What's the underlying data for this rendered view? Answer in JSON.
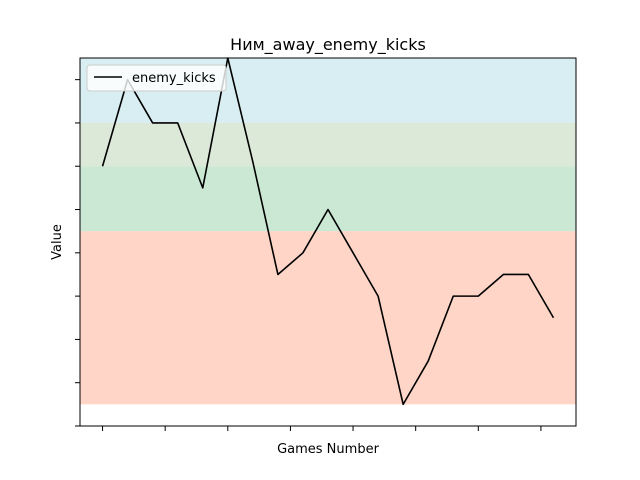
{
  "chart_data": {
    "type": "line",
    "title": "Ним_away_enemy_kicks",
    "xlabel": "Games Number",
    "ylabel": "Value",
    "x": [
      0,
      1,
      2,
      3,
      4,
      5,
      6,
      7,
      8,
      9,
      10,
      11,
      12,
      13,
      14,
      15,
      16,
      17,
      18
    ],
    "series": [
      {
        "name": "enemy_kicks",
        "color": "#000000",
        "values": [
          10.2,
          14.2,
          12.2,
          12.2,
          9.2,
          15.2,
          10.4,
          5.2,
          6.2,
          8.2,
          6.2,
          4.2,
          -0.8,
          1.2,
          4.2,
          4.2,
          5.2,
          5.2,
          3.2
        ]
      }
    ],
    "ylim": [
      -1.8,
      15.2
    ],
    "xlim": [
      -0.9,
      18.9
    ],
    "bands": [
      {
        "from": -0.8,
        "to": 7.2,
        "color": "#fdb9a0"
      },
      {
        "from": 7.2,
        "to": 10.2,
        "color": "#a6d8b5"
      },
      {
        "from": 10.2,
        "to": 12.2,
        "color": "#c5d8be"
      },
      {
        "from": 12.2,
        "to": 15.2,
        "color": "#c0e2ea"
      }
    ],
    "grid": false,
    "legend": "top-left",
    "x_tick_labels_visible": false,
    "y_tick_labels_visible": false
  }
}
